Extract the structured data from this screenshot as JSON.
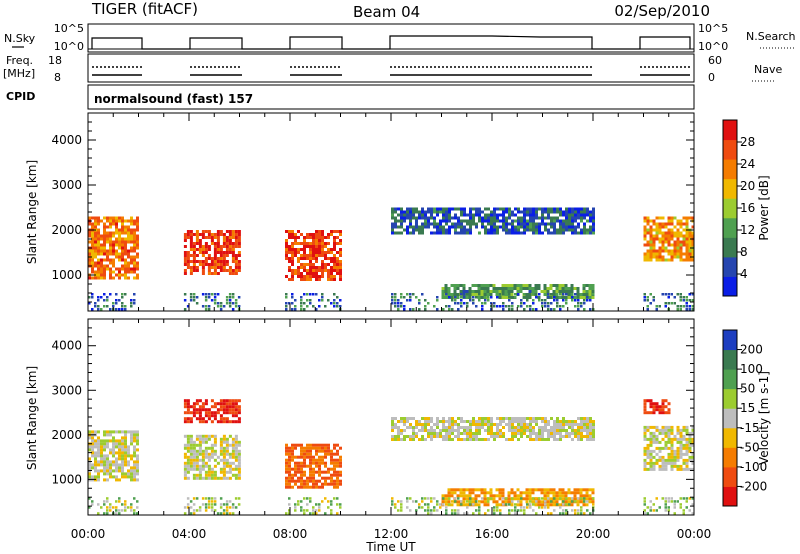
{
  "header": {
    "station": "TIGER (fitACF)",
    "beam": "Beam 04",
    "date": "02/Sep/2010"
  },
  "left_labels": {
    "nsky": "N.Sky",
    "freq_line1": "Freq.",
    "freq_line2": "[MHz]",
    "cpid": "CPID"
  },
  "right_labels": {
    "nsearch": "N.Search",
    "nave": "Nave"
  },
  "strip_ticks": {
    "noise_left": [
      "10^5",
      "10^0"
    ],
    "noise_right": [
      "10^5",
      "10^0"
    ],
    "freq_left": [
      "18",
      "8"
    ],
    "nave_right": [
      "60",
      "0"
    ]
  },
  "cpid_text": "normalsound (fast) 157",
  "colors": {
    "power_scale": [
      "#0a1ee6",
      "#2545b0",
      "#3a7a50",
      "#4fa050",
      "#9ccc30",
      "#f0b800",
      "#f57c00",
      "#ef4b10",
      "#e01010"
    ],
    "velocity_scale": [
      "#e01010",
      "#ef4b10",
      "#f57c00",
      "#f0b800",
      "#bdbdbd",
      "#9ccc30",
      "#4fa050",
      "#3a7a50",
      "#1d3ec0"
    ]
  },
  "chart_data": [
    {
      "type": "heatmap",
      "name": "Power",
      "xlabel": "Time UT",
      "ylabel": "Slant Range [km]",
      "xlim": [
        0,
        24
      ],
      "ylim": [
        200,
        4600
      ],
      "xticks": [
        "00:00",
        "04:00",
        "08:00",
        "12:00",
        "16:00",
        "20:00",
        "00:00"
      ],
      "yticks": [
        1000,
        2000,
        3000,
        4000
      ],
      "colorbar": {
        "label": "Power [dB]",
        "ticks": [
          4,
          8,
          12,
          16,
          20,
          24,
          28
        ],
        "range": [
          0,
          32
        ]
      },
      "data_gaps_hours": [
        [
          2.0,
          3.8
        ],
        [
          6.0,
          7.8
        ],
        [
          10.0,
          12.0
        ],
        [
          20.0,
          22.0
        ]
      ],
      "echo_regions": [
        {
          "t": [
            0.0,
            2.0
          ],
          "range_km": [
            900,
            2300
          ],
          "value": 24
        },
        {
          "t": [
            3.8,
            6.0
          ],
          "range_km": [
            1000,
            2000
          ],
          "value": 28
        },
        {
          "t": [
            7.8,
            10.0
          ],
          "range_km": [
            900,
            2000
          ],
          "value": 28
        },
        {
          "t": [
            12.0,
            20.0
          ],
          "range_km": [
            1900,
            2500
          ],
          "value": 6
        },
        {
          "t": [
            14.0,
            20.0
          ],
          "range_km": [
            500,
            800
          ],
          "value": 12
        },
        {
          "t": [
            22.0,
            24.0
          ],
          "range_km": [
            1300,
            2300
          ],
          "value": 22
        }
      ]
    },
    {
      "type": "heatmap",
      "name": "Velocity",
      "xlabel": "Time UT",
      "ylabel": "Slant Range [km]",
      "xlim": [
        0,
        24
      ],
      "ylim": [
        200,
        4600
      ],
      "xticks": [
        "00:00",
        "04:00",
        "08:00",
        "12:00",
        "16:00",
        "20:00",
        "00:00"
      ],
      "yticks": [
        1000,
        2000,
        3000,
        4000
      ],
      "colorbar": {
        "label": "Velocity [m s-1]",
        "ticks": [
          200,
          100,
          50,
          15,
          -15,
          -50,
          -100,
          -200
        ]
      },
      "echo_regions": [
        {
          "t": [
            0.0,
            2.0
          ],
          "range_km": [
            1000,
            2100
          ],
          "value": 0
        },
        {
          "t": [
            3.8,
            6.0
          ],
          "range_km": [
            2300,
            2800
          ],
          "value": -200
        },
        {
          "t": [
            3.8,
            6.0
          ],
          "range_km": [
            1000,
            2000
          ],
          "value": 0
        },
        {
          "t": [
            7.8,
            10.0
          ],
          "range_km": [
            800,
            1800
          ],
          "value": -100
        },
        {
          "t": [
            12.0,
            20.0
          ],
          "range_km": [
            1900,
            2400
          ],
          "value": 0
        },
        {
          "t": [
            14.0,
            20.0
          ],
          "range_km": [
            400,
            800
          ],
          "value": -50
        },
        {
          "t": [
            22.0,
            24.0
          ],
          "range_km": [
            1200,
            2200
          ],
          "value": 0
        },
        {
          "t": [
            22.0,
            23.0
          ],
          "range_km": [
            2500,
            2800
          ],
          "value": -200
        }
      ]
    }
  ]
}
